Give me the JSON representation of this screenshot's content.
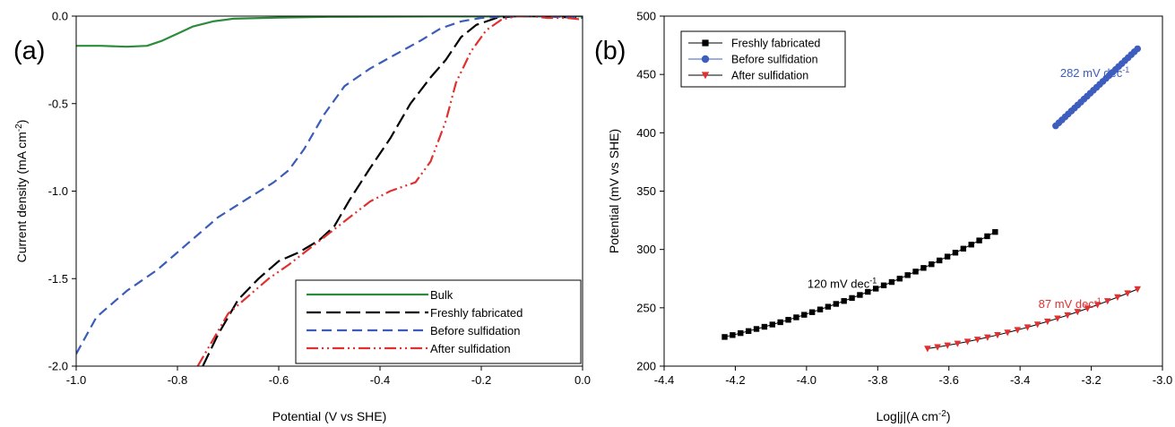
{
  "chart_data": [
    {
      "panel_label": "(a)",
      "type": "line",
      "xlabel": "Potential (V vs SHE)",
      "ylabel_main": "Current density (mA cm",
      "ylabel_sup": "-2",
      "ylabel_tail": ")",
      "xlim": [
        -1.0,
        0.0
      ],
      "ylim": [
        -2.0,
        0.0
      ],
      "xticks": [
        -1.0,
        -0.8,
        -0.6,
        -0.4,
        -0.2,
        0.0
      ],
      "xtick_labels": [
        "-1.0",
        "-0.8",
        "-0.6",
        "-0.4",
        "-0.2",
        "0.0"
      ],
      "yticks": [
        0.0,
        -0.5,
        -1.0,
        -1.5,
        -2.0
      ],
      "ytick_labels": [
        "0.0",
        "-0.5",
        "-1.0",
        "-1.5",
        "-2.0"
      ],
      "grid": false,
      "legend_position": "bottom-right",
      "series": [
        {
          "name": "Bulk",
          "color": "#2e8b3c",
          "dash": "solid",
          "points": [
            [
              -1.0,
              -0.17
            ],
            [
              -0.95,
              -0.17
            ],
            [
              -0.9,
              -0.175
            ],
            [
              -0.86,
              -0.17
            ],
            [
              -0.83,
              -0.14
            ],
            [
              -0.8,
              -0.1
            ],
            [
              -0.77,
              -0.06
            ],
            [
              -0.73,
              -0.03
            ],
            [
              -0.69,
              -0.015
            ],
            [
              -0.6,
              -0.008
            ],
            [
              -0.5,
              -0.004
            ],
            [
              -0.3,
              -0.002
            ],
            [
              0.0,
              -0.001
            ]
          ]
        },
        {
          "name": "Freshly fabricated",
          "color": "#000000",
          "dash": "long",
          "points": [
            [
              -0.75,
              -2.0
            ],
            [
              -0.72,
              -1.82
            ],
            [
              -0.68,
              -1.62
            ],
            [
              -0.64,
              -1.5
            ],
            [
              -0.6,
              -1.4
            ],
            [
              -0.56,
              -1.35
            ],
            [
              -0.52,
              -1.28
            ],
            [
              -0.49,
              -1.2
            ],
            [
              -0.46,
              -1.05
            ],
            [
              -0.42,
              -0.87
            ],
            [
              -0.38,
              -0.7
            ],
            [
              -0.34,
              -0.5
            ],
            [
              -0.3,
              -0.35
            ],
            [
              -0.27,
              -0.25
            ],
            [
              -0.24,
              -0.12
            ],
            [
              -0.21,
              -0.05
            ],
            [
              -0.17,
              -0.01
            ],
            [
              -0.13,
              0.0
            ],
            [
              -0.08,
              0.0
            ],
            [
              0.0,
              -0.01
            ]
          ]
        },
        {
          "name": "Before sulfidation",
          "color": "#3b5cb8",
          "dash": "medium",
          "points": [
            [
              -1.0,
              -1.93
            ],
            [
              -0.96,
              -1.72
            ],
            [
              -0.9,
              -1.57
            ],
            [
              -0.84,
              -1.45
            ],
            [
              -0.78,
              -1.3
            ],
            [
              -0.72,
              -1.15
            ],
            [
              -0.66,
              -1.04
            ],
            [
              -0.61,
              -0.95
            ],
            [
              -0.58,
              -0.88
            ],
            [
              -0.55,
              -0.76
            ],
            [
              -0.51,
              -0.56
            ],
            [
              -0.47,
              -0.4
            ],
            [
              -0.42,
              -0.3
            ],
            [
              -0.37,
              -0.22
            ],
            [
              -0.32,
              -0.14
            ],
            [
              -0.28,
              -0.07
            ],
            [
              -0.24,
              -0.03
            ],
            [
              -0.2,
              -0.01
            ],
            [
              -0.14,
              0.0
            ],
            [
              -0.07,
              0.0
            ],
            [
              0.0,
              -0.01
            ]
          ]
        },
        {
          "name": "After sulfidation",
          "color": "#e03030",
          "dash": "dashdotdot",
          "points": [
            [
              -0.76,
              -2.0
            ],
            [
              -0.73,
              -1.85
            ],
            [
              -0.7,
              -1.7
            ],
            [
              -0.66,
              -1.6
            ],
            [
              -0.62,
              -1.5
            ],
            [
              -0.58,
              -1.42
            ],
            [
              -0.54,
              -1.33
            ],
            [
              -0.5,
              -1.24
            ],
            [
              -0.46,
              -1.15
            ],
            [
              -0.42,
              -1.06
            ],
            [
              -0.38,
              -1.0
            ],
            [
              -0.33,
              -0.95
            ],
            [
              -0.3,
              -0.83
            ],
            [
              -0.27,
              -0.6
            ],
            [
              -0.25,
              -0.38
            ],
            [
              -0.22,
              -0.2
            ],
            [
              -0.19,
              -0.08
            ],
            [
              -0.16,
              -0.02
            ],
            [
              -0.13,
              0.0
            ],
            [
              -0.1,
              0.0
            ],
            [
              -0.07,
              -0.01
            ],
            [
              -0.03,
              -0.01
            ],
            [
              0.0,
              -0.02
            ]
          ]
        }
      ]
    },
    {
      "panel_label": "(b)",
      "type": "scatter",
      "xlabel_main": "Log|j|(A cm",
      "xlabel_sup": "-2",
      "xlabel_tail": ")",
      "ylabel": "Potential (mV vs SHE)",
      "xlim": [
        -4.4,
        -3.0
      ],
      "ylim": [
        200,
        500
      ],
      "xticks": [
        -4.4,
        -4.2,
        -4.0,
        -3.8,
        -3.6,
        -3.4,
        -3.2,
        -3.0
      ],
      "xtick_labels": [
        "-4.4",
        "-4.2",
        "-4.0",
        "-3.8",
        "-3.6",
        "-3.4",
        "-3.2",
        "-3.0"
      ],
      "yticks": [
        200,
        250,
        300,
        350,
        400,
        450,
        500
      ],
      "ytick_labels": [
        "200",
        "250",
        "300",
        "350",
        "400",
        "450",
        "500"
      ],
      "grid": false,
      "legend_position": "top-left",
      "series": [
        {
          "name": "Freshly fabricated",
          "color": "#000000",
          "marker": "square",
          "x_range": [
            -4.23,
            -3.47
          ],
          "y_range": [
            225,
            315
          ],
          "curvature": 9,
          "n_points": 35
        },
        {
          "name": "Before sulfidation",
          "color": "#3d5dbf",
          "marker": "circle",
          "x_range": [
            -3.3,
            -3.07
          ],
          "y_range": [
            406,
            472
          ],
          "curvature": 0,
          "n_points": 27
        },
        {
          "name": "After sulfidation",
          "color": "#e03030",
          "marker": "triangle-down",
          "x_range": [
            -3.66,
            -3.07
          ],
          "y_range": [
            215,
            266
          ],
          "curvature": 6,
          "n_points": 22
        }
      ],
      "annotations": [
        {
          "text": "282 mV dec",
          "sup": "-1",
          "color": "#3d5dbf",
          "x": -3.19,
          "y": 448
        },
        {
          "text": "120 mV dec",
          "sup": "-1",
          "color": "#000000",
          "x": -3.9,
          "y": 267
        },
        {
          "text": "87 mV dec",
          "sup": "-1",
          "color": "#e03030",
          "x": -3.26,
          "y": 250
        }
      ]
    }
  ]
}
